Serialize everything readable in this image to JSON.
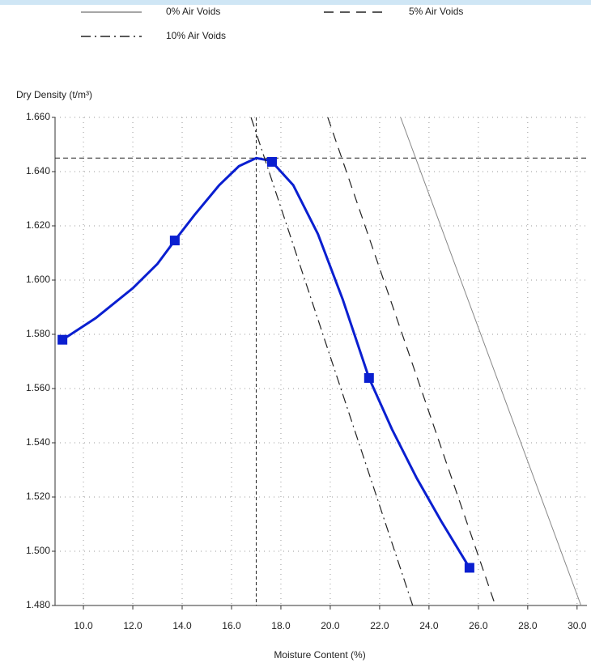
{
  "chart_data": {
    "type": "line",
    "ylabel": "Dry Density (t/m³)",
    "xlabel": "Moisture Content (%)",
    "xlim": [
      8.85,
      30.4
    ],
    "ylim": [
      1.48,
      1.66
    ],
    "xticks": [
      {
        "value": 10,
        "label": "10.0"
      },
      {
        "value": 12,
        "label": "12.0"
      },
      {
        "value": 14,
        "label": "14.0"
      },
      {
        "value": 16,
        "label": "16.0"
      },
      {
        "value": 18,
        "label": "18.0"
      },
      {
        "value": 20,
        "label": "20.0"
      },
      {
        "value": 22,
        "label": "22.0"
      },
      {
        "value": 24,
        "label": "24.0"
      },
      {
        "value": 26,
        "label": "26.0"
      },
      {
        "value": 28,
        "label": "28.0"
      },
      {
        "value": 30,
        "label": "30.0"
      }
    ],
    "yticks": [
      {
        "value": 1.48,
        "label": "1.480"
      },
      {
        "value": 1.5,
        "label": "1.500"
      },
      {
        "value": 1.52,
        "label": "1.520"
      },
      {
        "value": 1.54,
        "label": "1.540"
      },
      {
        "value": 1.56,
        "label": "1.560"
      },
      {
        "value": 1.58,
        "label": "1.580"
      },
      {
        "value": 1.6,
        "label": "1.600"
      },
      {
        "value": 1.62,
        "label": "1.620"
      },
      {
        "value": 1.64,
        "label": "1.640"
      },
      {
        "value": 1.66,
        "label": "1.660"
      }
    ],
    "grid": true,
    "reference_lines": {
      "x": 17.0,
      "y": 1.645
    },
    "series": [
      {
        "color": "#0a1fd0",
        "style": "solid",
        "width": 3,
        "x": [
          9.15,
          10.5,
          12,
          13,
          13.7,
          14.5,
          15.5,
          16.3,
          17.0,
          17.6,
          18.5,
          19.5,
          20.5,
          21.57,
          22.5,
          23.5,
          24.5,
          25.64
        ],
        "values": [
          1.578,
          1.586,
          1.597,
          1.606,
          1.6146,
          1.624,
          1.635,
          1.642,
          1.645,
          1.644,
          1.635,
          1.617,
          1.593,
          1.5639,
          1.545,
          1.527,
          1.511,
          1.4939
        ]
      },
      {
        "color": "#0a1fd0",
        "marker": "square",
        "line": false,
        "x": [
          9.15,
          13.7,
          17.64,
          21.57,
          25.64
        ],
        "values": [
          1.578,
          1.6146,
          1.6436,
          1.5639,
          1.4939
        ]
      },
      {
        "name": "0% Air Voids",
        "color": "#888888",
        "style": "solid",
        "width": 1,
        "x": [
          22.85,
          30.16
        ],
        "values": [
          1.66,
          1.48
        ]
      },
      {
        "name": "5% Air Voids",
        "color": "#222222",
        "style": "dashed",
        "width": 1.2,
        "x": [
          19.9,
          26.69
        ],
        "values": [
          1.66,
          1.48
        ]
      },
      {
        "name": "10% Air Voids",
        "color": "#222222",
        "style": "dashdot",
        "width": 1.2,
        "x": [
          16.79,
          23.34
        ],
        "values": [
          1.66,
          1.48
        ]
      }
    ]
  }
}
